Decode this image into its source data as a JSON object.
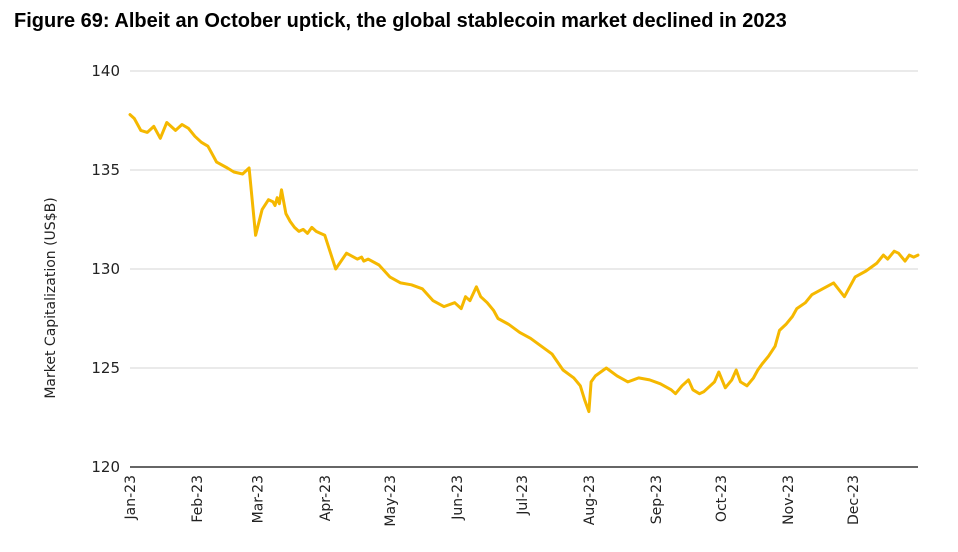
{
  "chart_data": {
    "type": "line",
    "title": "Figure 69: Albeit an October uptick, the global stablecoin market declined in 2023",
    "xlabel": "",
    "ylabel": "Market Capitalization (US$B)",
    "ylim": [
      120,
      140
    ],
    "yticks": [
      120,
      125,
      130,
      135,
      140
    ],
    "grid": "horizontal",
    "line_color": "#F5B800",
    "x_tick_labels": [
      "Jan-23",
      "Feb-23",
      "Mar-23",
      "Apr-23",
      "May-23",
      "Jun-23",
      "Jul-23",
      "Aug-23",
      "Sep-23",
      "Oct-23",
      "Nov-23",
      "Dec-23"
    ],
    "series": [
      {
        "name": "Global stablecoin market capitalization",
        "x_unit": "day of 2023",
        "x": [
          0,
          2,
          5,
          8,
          11,
          14,
          17,
          21,
          24,
          27,
          30,
          33,
          36,
          38,
          40,
          45,
          48,
          52,
          55,
          58,
          61,
          64,
          66,
          67,
          68,
          69,
          70,
          72,
          74,
          76,
          78,
          80,
          82,
          84,
          86,
          88,
          90,
          95,
          100,
          105,
          107,
          108,
          110,
          115,
          120,
          125,
          130,
          135,
          140,
          145,
          150,
          153,
          155,
          157,
          160,
          162,
          165,
          168,
          170,
          175,
          180,
          185,
          190,
          195,
          200,
          205,
          208,
          210,
          212,
          213,
          215,
          220,
          225,
          230,
          235,
          240,
          245,
          250,
          252,
          255,
          258,
          260,
          263,
          265,
          270,
          272,
          275,
          278,
          280,
          282,
          285,
          288,
          290,
          292,
          295,
          298,
          300,
          303,
          306,
          308,
          312,
          315,
          320,
          325,
          330,
          335,
          340,
          345,
          348,
          350,
          353,
          355,
          358,
          360,
          362,
          364
        ],
        "values": [
          137.8,
          137.6,
          137.0,
          136.9,
          137.2,
          136.6,
          137.4,
          137.0,
          137.3,
          137.1,
          136.7,
          136.4,
          136.2,
          135.8,
          135.4,
          135.1,
          134.9,
          134.8,
          135.1,
          131.7,
          133.0,
          133.5,
          133.4,
          133.2,
          133.6,
          133.3,
          134.0,
          132.8,
          132.4,
          132.1,
          131.9,
          132.0,
          131.8,
          132.1,
          131.9,
          131.8,
          131.7,
          130.0,
          130.8,
          130.5,
          130.6,
          130.4,
          130.5,
          130.2,
          129.6,
          129.3,
          129.2,
          129.0,
          128.4,
          128.1,
          128.3,
          128.0,
          128.6,
          128.4,
          129.1,
          128.6,
          128.3,
          127.9,
          127.5,
          127.2,
          126.8,
          126.5,
          126.1,
          125.7,
          124.9,
          124.5,
          124.1,
          123.4,
          122.8,
          124.3,
          124.6,
          125.0,
          124.6,
          124.3,
          124.5,
          124.4,
          124.2,
          123.9,
          123.7,
          124.1,
          124.4,
          123.9,
          123.7,
          123.8,
          124.3,
          124.8,
          124.0,
          124.4,
          124.9,
          124.3,
          124.1,
          124.5,
          124.9,
          125.2,
          125.6,
          126.1,
          126.9,
          127.2,
          127.6,
          128.0,
          128.3,
          128.7,
          129.0,
          129.3,
          128.6,
          129.6,
          129.9,
          130.3,
          130.7,
          130.5,
          130.9,
          130.8,
          130.4,
          130.7,
          130.6,
          130.7
        ]
      }
    ]
  }
}
